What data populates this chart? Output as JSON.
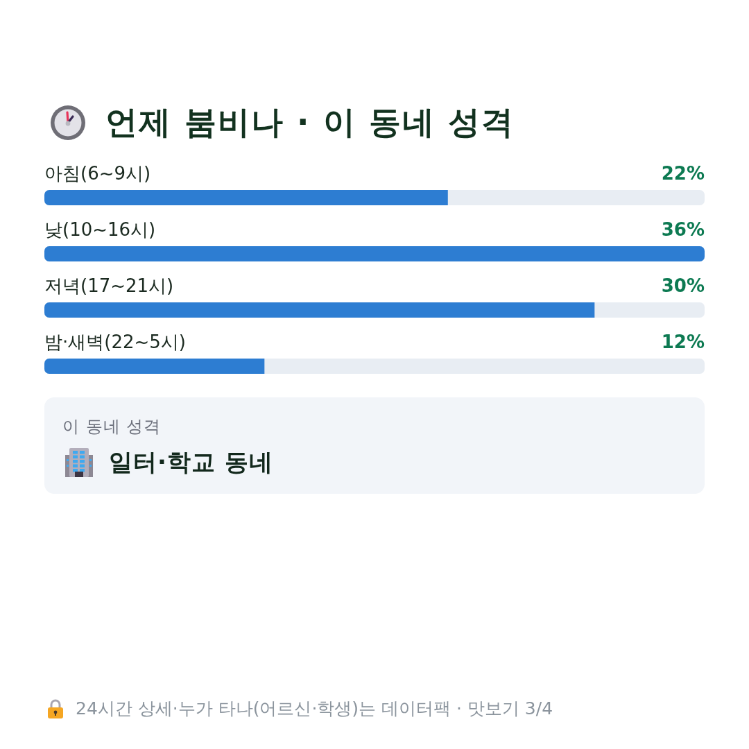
{
  "chart_data": {
    "type": "bar",
    "orientation": "horizontal",
    "title": "언제 붐비나 · 이 동네 성격",
    "categories": [
      "아침(6~9시)",
      "낮(10~16시)",
      "저녁(17~21시)",
      "밤·새벽(22~5시)"
    ],
    "values": [
      22,
      36,
      30,
      12
    ],
    "color": "#2d7dd2",
    "value_labels": [
      "22%",
      "36%",
      "30%",
      "12%"
    ],
    "tick_labels": "y",
    "annotations": [
      "이 동네 성격",
      "일터·학교 동네",
      "24시간 상세·누가 타나(어르신·학생)는 데이터팩 · 맛보기 3/4"
    ]
  }
}
